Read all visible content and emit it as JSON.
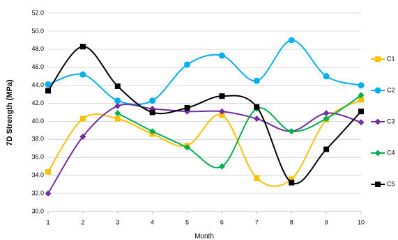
{
  "chart_data": {
    "type": "line",
    "y_label": "7D Strength (MPa)",
    "x_label": "Month",
    "x": [
      1,
      2,
      3,
      4,
      5,
      6,
      7,
      8,
      9,
      10
    ],
    "xlim": [
      1,
      10
    ],
    "xticks": [
      1,
      2,
      3,
      4,
      5,
      6,
      7,
      8,
      9,
      10
    ],
    "ylim": [
      30,
      52
    ],
    "yticks": [
      {
        "value": 30,
        "label": "30.0"
      },
      {
        "value": 32,
        "label": "32.0"
      },
      {
        "value": 34,
        "label": "34.0"
      },
      {
        "value": 36,
        "label": "36.0"
      },
      {
        "value": 38,
        "label": "38.0"
      },
      {
        "value": 40,
        "label": "40.0"
      },
      {
        "value": 42,
        "label": "42.0"
      },
      {
        "value": 44,
        "label": "44.0"
      },
      {
        "value": 46,
        "label": "46.0"
      },
      {
        "value": 48,
        "label": "48.0"
      },
      {
        "value": 50,
        "label": "50.0"
      },
      {
        "value": 52,
        "label": "52.0"
      }
    ],
    "grid": true,
    "smooth": true,
    "legend": "right",
    "series": [
      {
        "name": "C1",
        "color": "#ffc000",
        "marker": "square",
        "values": [
          34.4,
          40.3,
          40.3,
          38.6,
          37.3,
          40.7,
          33.7,
          33.6,
          40.2,
          42.4
        ]
      },
      {
        "name": "C2",
        "color": "#00b0f0",
        "marker": "circle",
        "values": [
          44.1,
          45.2,
          42.3,
          42.3,
          46.3,
          47.3,
          44.5,
          49.0,
          45.0,
          44.0
        ]
      },
      {
        "name": "C3",
        "color": "#7030a0",
        "marker": "diamond",
        "values": [
          32.0,
          38.3,
          41.7,
          41.4,
          41.1,
          41.1,
          40.3,
          38.9,
          40.9,
          39.9
        ]
      },
      {
        "name": "C4",
        "color": "#00b050",
        "marker": "diamond",
        "values": [
          null,
          null,
          40.9,
          38.9,
          37.1,
          35.0,
          41.4,
          38.9,
          40.3,
          42.9
        ]
      },
      {
        "name": "C5",
        "color": "#000000",
        "marker": "square",
        "values": [
          43.4,
          48.3,
          43.9,
          41.0,
          41.5,
          42.8,
          41.6,
          33.2,
          36.9,
          41.1
        ]
      }
    ]
  }
}
